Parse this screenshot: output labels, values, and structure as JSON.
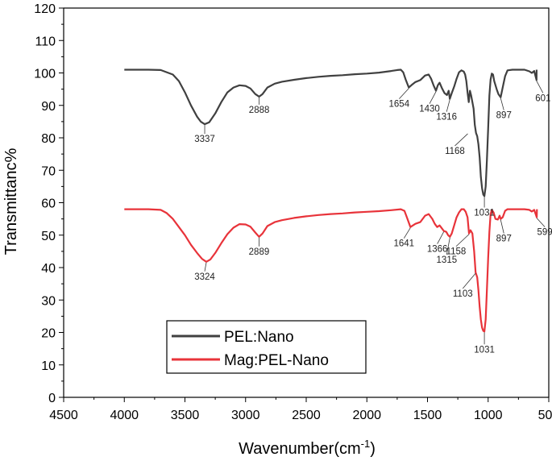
{
  "chart_data": {
    "type": "line",
    "xlabel": "Wavenumber(cm",
    "xlabel_sup": "-1",
    "xlabel_suffix": ")",
    "ylabel": "Transmittanc%",
    "xlim": [
      4500,
      500
    ],
    "ylim": [
      0,
      120
    ],
    "x_reversed": true,
    "xticks": [
      4500,
      4000,
      3500,
      3000,
      2500,
      2000,
      1500,
      1000,
      500
    ],
    "yticks": [
      0,
      10,
      20,
      30,
      40,
      50,
      60,
      70,
      80,
      90,
      100,
      110,
      120
    ],
    "grid": false,
    "legend_position": "bottom-left",
    "series": [
      {
        "name": "PEL:Nano",
        "color": "#404040",
        "points": [
          [
            4000,
            101
          ],
          [
            3800,
            101
          ],
          [
            3700,
            100.9
          ],
          [
            3600,
            99.5
          ],
          [
            3550,
            97.5
          ],
          [
            3500,
            94
          ],
          [
            3450,
            90
          ],
          [
            3400,
            86.5
          ],
          [
            3370,
            85
          ],
          [
            3337,
            84.2
          ],
          [
            3300,
            84.8
          ],
          [
            3250,
            87.5
          ],
          [
            3200,
            91
          ],
          [
            3150,
            94
          ],
          [
            3100,
            95.5
          ],
          [
            3050,
            96.2
          ],
          [
            3000,
            96
          ],
          [
            2960,
            95.2
          ],
          [
            2920,
            93.5
          ],
          [
            2888,
            92.7
          ],
          [
            2860,
            93.5
          ],
          [
            2820,
            95.5
          ],
          [
            2760,
            96.7
          ],
          [
            2700,
            97.3
          ],
          [
            2600,
            97.9
          ],
          [
            2500,
            98.4
          ],
          [
            2400,
            98.8
          ],
          [
            2300,
            99.1
          ],
          [
            2200,
            99.3
          ],
          [
            2100,
            99.6
          ],
          [
            2000,
            99.8
          ],
          [
            1900,
            100.1
          ],
          [
            1800,
            100.6
          ],
          [
            1750,
            100.9
          ],
          [
            1720,
            101
          ],
          [
            1700,
            100.2
          ],
          [
            1680,
            98
          ],
          [
            1654,
            95.5
          ],
          [
            1630,
            96.3
          ],
          [
            1600,
            97.2
          ],
          [
            1560,
            97.8
          ],
          [
            1520,
            99.2
          ],
          [
            1490,
            99.5
          ],
          [
            1470,
            98.2
          ],
          [
            1450,
            96.2
          ],
          [
            1430,
            94.5
          ],
          [
            1415,
            96.2
          ],
          [
            1400,
            97
          ],
          [
            1380,
            95.2
          ],
          [
            1360,
            93.8
          ],
          [
            1340,
            93.2
          ],
          [
            1325,
            94.5
          ],
          [
            1316,
            92
          ],
          [
            1300,
            93.8
          ],
          [
            1280,
            95.8
          ],
          [
            1260,
            98.2
          ],
          [
            1240,
            100.2
          ],
          [
            1220,
            100.8
          ],
          [
            1200,
            100.4
          ],
          [
            1190,
            99.5
          ],
          [
            1180,
            97.5
          ],
          [
            1170,
            94
          ],
          [
            1160,
            91
          ],
          [
            1150,
            94.5
          ],
          [
            1140,
            93
          ],
          [
            1130,
            91
          ],
          [
            1120,
            89
          ],
          [
            1110,
            84
          ],
          [
            1100,
            81.5
          ],
          [
            1090,
            80.5
          ],
          [
            1080,
            78
          ],
          [
            1070,
            74
          ],
          [
            1060,
            68
          ],
          [
            1050,
            64.5
          ],
          [
            1040,
            62.5
          ],
          [
            1031,
            62
          ],
          [
            1020,
            65
          ],
          [
            1010,
            73
          ],
          [
            1000,
            83
          ],
          [
            990,
            93
          ],
          [
            980,
            98
          ],
          [
            970,
            99.8
          ],
          [
            960,
            99.5
          ],
          [
            950,
            97.5
          ],
          [
            930,
            95
          ],
          [
            915,
            93.5
          ],
          [
            897,
            92.5
          ],
          [
            880,
            95.5
          ],
          [
            860,
            99
          ],
          [
            840,
            100.8
          ],
          [
            800,
            101
          ],
          [
            750,
            101
          ],
          [
            700,
            101
          ],
          [
            660,
            100.5
          ],
          [
            640,
            100
          ],
          [
            620,
            100.6
          ],
          [
            601,
            97.8
          ],
          [
            600,
            101
          ]
        ]
      },
      {
        "name": "Mag:PEL-Nano",
        "color": "#e8333a",
        "points": [
          [
            4000,
            58
          ],
          [
            3800,
            58
          ],
          [
            3700,
            57.8
          ],
          [
            3650,
            56.8
          ],
          [
            3600,
            55
          ],
          [
            3550,
            52.5
          ],
          [
            3500,
            50
          ],
          [
            3450,
            47
          ],
          [
            3400,
            44.5
          ],
          [
            3360,
            42.7
          ],
          [
            3324,
            41.8
          ],
          [
            3290,
            42.5
          ],
          [
            3250,
            44.5
          ],
          [
            3200,
            47.5
          ],
          [
            3150,
            50.3
          ],
          [
            3100,
            52.3
          ],
          [
            3050,
            53.4
          ],
          [
            3000,
            53.3
          ],
          [
            2960,
            52.6
          ],
          [
            2920,
            50.8
          ],
          [
            2889,
            49.5
          ],
          [
            2860,
            50.5
          ],
          [
            2820,
            52.8
          ],
          [
            2760,
            54
          ],
          [
            2700,
            54.6
          ],
          [
            2600,
            55.3
          ],
          [
            2500,
            55.8
          ],
          [
            2400,
            56.2
          ],
          [
            2300,
            56.5
          ],
          [
            2200,
            56.7
          ],
          [
            2100,
            57
          ],
          [
            2000,
            57.2
          ],
          [
            1900,
            57.4
          ],
          [
            1800,
            57.7
          ],
          [
            1720,
            58
          ],
          [
            1690,
            57.5
          ],
          [
            1670,
            55.5
          ],
          [
            1641,
            52.5
          ],
          [
            1620,
            53
          ],
          [
            1600,
            53.5
          ],
          [
            1560,
            54
          ],
          [
            1520,
            56
          ],
          [
            1490,
            56.5
          ],
          [
            1460,
            55
          ],
          [
            1440,
            53.5
          ],
          [
            1420,
            52.5
          ],
          [
            1400,
            53
          ],
          [
            1390,
            52.5
          ],
          [
            1366,
            51.3
          ],
          [
            1345,
            51
          ],
          [
            1330,
            50
          ],
          [
            1315,
            49.5
          ],
          [
            1300,
            50.5
          ],
          [
            1280,
            53
          ],
          [
            1260,
            55.5
          ],
          [
            1240,
            57
          ],
          [
            1220,
            58
          ],
          [
            1200,
            58
          ],
          [
            1185,
            57.2
          ],
          [
            1170,
            55.5
          ],
          [
            1158,
            50.5
          ],
          [
            1145,
            51.5
          ],
          [
            1130,
            50.5
          ],
          [
            1115,
            45
          ],
          [
            1103,
            38.5
          ],
          [
            1090,
            37
          ],
          [
            1080,
            33
          ],
          [
            1070,
            28
          ],
          [
            1060,
            24
          ],
          [
            1050,
            21.5
          ],
          [
            1040,
            20.5
          ],
          [
            1031,
            20.3
          ],
          [
            1020,
            24
          ],
          [
            1010,
            33
          ],
          [
            1000,
            43
          ],
          [
            990,
            51
          ],
          [
            980,
            56.5
          ],
          [
            970,
            57.8
          ],
          [
            955,
            57
          ],
          [
            940,
            55
          ],
          [
            920,
            54.8
          ],
          [
            905,
            56
          ],
          [
            897,
            55
          ],
          [
            880,
            55.5
          ],
          [
            860,
            57.5
          ],
          [
            840,
            58
          ],
          [
            800,
            58
          ],
          [
            750,
            58
          ],
          [
            700,
            58
          ],
          [
            660,
            57.8
          ],
          [
            640,
            57.3
          ],
          [
            620,
            57.8
          ],
          [
            599,
            55.5
          ],
          [
            598,
            58
          ]
        ]
      }
    ],
    "annotations": [
      {
        "text": "3337",
        "x": 3337,
        "y": 84.2,
        "series": "PEL:Nano"
      },
      {
        "text": "2888",
        "x": 2888,
        "y": 92.7,
        "series": "PEL:Nano"
      },
      {
        "text": "1654",
        "x": 1654,
        "y": 95.5,
        "series": "PEL:Nano"
      },
      {
        "text": "1430",
        "x": 1430,
        "y": 94.5,
        "series": "PEL:Nano"
      },
      {
        "text": "1316",
        "x": 1316,
        "y": 92,
        "series": "PEL:Nano"
      },
      {
        "text": "1168",
        "x": 1168,
        "y": 81.5,
        "series": "PEL:Nano"
      },
      {
        "text": "1031",
        "x": 1031,
        "y": 62,
        "series": "PEL:Nano"
      },
      {
        "text": "897",
        "x": 897,
        "y": 92.5,
        "series": "PEL:Nano"
      },
      {
        "text": "601",
        "x": 601,
        "y": 97.8,
        "series": "PEL:Nano"
      },
      {
        "text": "3324",
        "x": 3324,
        "y": 41.8,
        "series": "Mag:PEL-Nano"
      },
      {
        "text": "2889",
        "x": 2889,
        "y": 49.5,
        "series": "Mag:PEL-Nano"
      },
      {
        "text": "1641",
        "x": 1641,
        "y": 52.5,
        "series": "Mag:PEL-Nano"
      },
      {
        "text": "1366",
        "x": 1366,
        "y": 51.3,
        "series": "Mag:PEL-Nano"
      },
      {
        "text": "1315",
        "x": 1315,
        "y": 49.5,
        "series": "Mag:PEL-Nano"
      },
      {
        "text": "1158",
        "x": 1158,
        "y": 50.5,
        "series": "Mag:PEL-Nano"
      },
      {
        "text": "1103",
        "x": 1103,
        "y": 38.5,
        "series": "Mag:PEL-Nano"
      },
      {
        "text": "1031",
        "x": 1031,
        "y": 20.3,
        "series": "Mag:PEL-Nano"
      },
      {
        "text": "897",
        "x": 897,
        "y": 55,
        "series": "Mag:PEL-Nano"
      },
      {
        "text": "599",
        "x": 599,
        "y": 55.5,
        "series": "Mag:PEL-Nano"
      }
    ]
  }
}
